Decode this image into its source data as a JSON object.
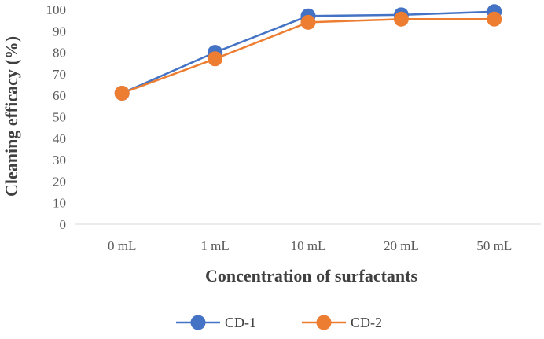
{
  "chart_data": {
    "type": "line",
    "title": "",
    "xlabel": "Concentration of surfactants",
    "ylabel": "Cleaning efficacy (%)",
    "categories": [
      "0 mL",
      "1 mL",
      "10 mL",
      "20 mL",
      "50 mL"
    ],
    "ylim": [
      0,
      100
    ],
    "yticks": [
      0,
      10,
      20,
      30,
      40,
      50,
      60,
      70,
      80,
      90,
      100
    ],
    "grid": false,
    "legend_position": "bottom",
    "series": [
      {
        "name": "CD-1",
        "color": "#4472c4",
        "values": [
          61,
          80,
          97,
          97.5,
          99
        ]
      },
      {
        "name": "CD-2",
        "color": "#ed7d31",
        "values": [
          61,
          77,
          94,
          95.5,
          95.5
        ]
      }
    ]
  }
}
